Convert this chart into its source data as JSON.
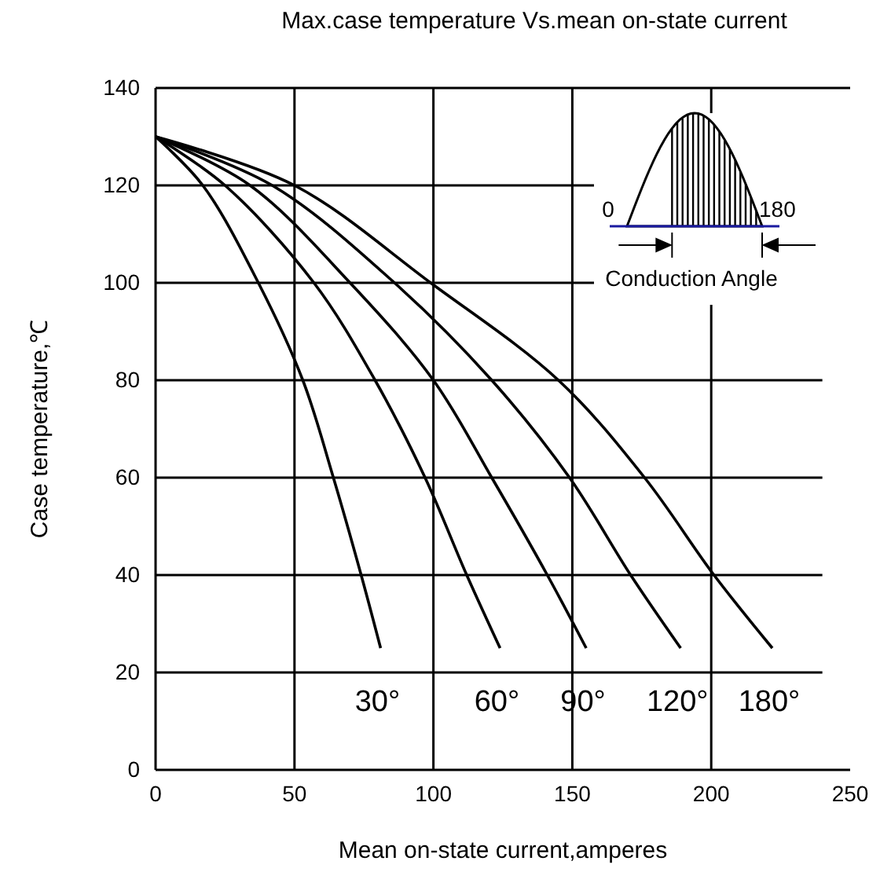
{
  "chart_data": {
    "type": "line",
    "title": "Max.case temperature Vs.mean on-state current",
    "xlabel": "Mean on-state current,amperes",
    "ylabel": "Case temperature,℃",
    "xlim": [
      0,
      250
    ],
    "xticks": [
      0,
      50,
      100,
      150,
      200,
      250
    ],
    "ylim": [
      0,
      140
    ],
    "yticks": [
      0,
      20,
      40,
      60,
      80,
      100,
      120,
      140
    ],
    "grid": true,
    "legend": false,
    "marker": "none",
    "line_style": "solid",
    "series": [
      {
        "name": "30°",
        "color": "#000000",
        "x": [
          0,
          17,
          37,
          53,
          64,
          74,
          81
        ],
        "values": [
          130,
          120,
          100,
          80,
          60,
          40,
          25
        ]
      },
      {
        "name": "60°",
        "color": "#000000",
        "x": [
          0,
          25,
          57,
          79,
          97,
          112,
          124
        ],
        "values": [
          130,
          120,
          100,
          80,
          60,
          40,
          25
        ]
      },
      {
        "name": "90°",
        "color": "#000000",
        "x": [
          0,
          34,
          70,
          100,
          121,
          141,
          155
        ],
        "values": [
          130,
          120,
          100,
          80,
          60,
          40,
          25
        ]
      },
      {
        "name": "120°",
        "color": "#000000",
        "x": [
          0,
          42,
          86,
          121,
          149,
          171,
          189
        ],
        "values": [
          130,
          120,
          100,
          80,
          60,
          40,
          25
        ]
      },
      {
        "name": "180°",
        "color": "#000000",
        "x": [
          0,
          50,
          99,
          145,
          176,
          201,
          222
        ],
        "values": [
          130,
          120,
          100,
          80,
          60,
          40,
          25
        ]
      }
    ],
    "annotations": [
      "0",
      "180",
      "Conduction Angle"
    ]
  }
}
